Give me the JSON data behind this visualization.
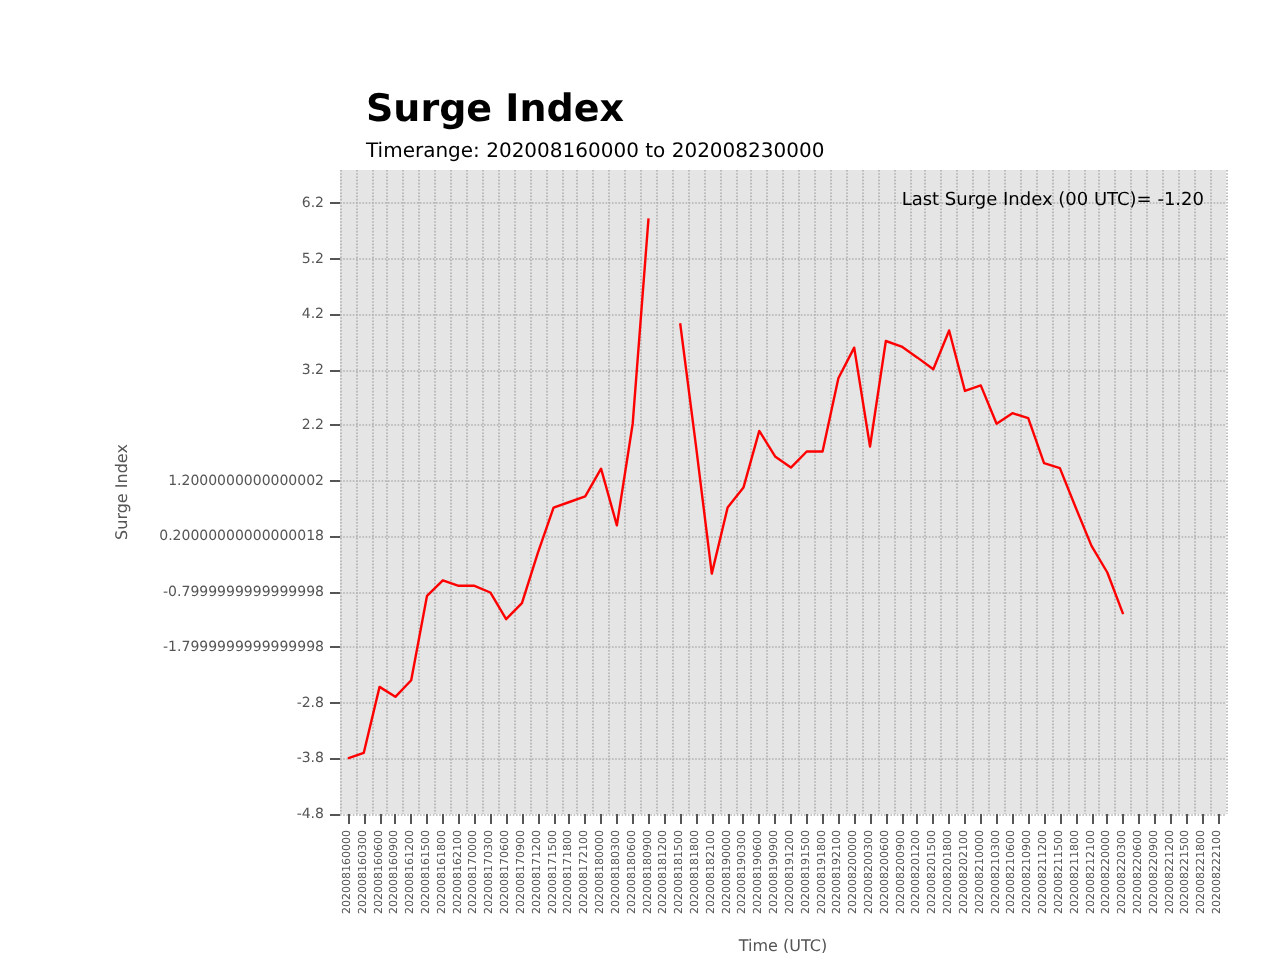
{
  "chart_data": {
    "type": "line",
    "title": "Surge Index",
    "subtitle": "Timerange: 202008160000 to 202008230000",
    "xlabel": "Time (UTC)",
    "ylabel": "Surge Index",
    "annotations": [
      "Last Surge Index (00 UTC)= -1.20"
    ],
    "categories": [
      "202008160000",
      "202008160300",
      "202008160600",
      "202008160900",
      "202008161200",
      "202008161500",
      "202008161800",
      "202008162100",
      "202008170000",
      "202008170300",
      "202008170600",
      "202008170900",
      "202008171200",
      "202008171500",
      "202008171800",
      "202008172100",
      "202008180000",
      "202008180300",
      "202008180600",
      "202008180900",
      "202008181200",
      "202008181500",
      "202008181800",
      "202008182100",
      "202008190000",
      "202008190300",
      "202008190600",
      "202008190900",
      "202008191200",
      "202008191500",
      "202008191800",
      "202008192100",
      "202008200000",
      "202008200300",
      "202008200600",
      "202008200900",
      "202008201200",
      "202008201500",
      "202008201800",
      "202008202100",
      "202008210000",
      "202008210300",
      "202008210600",
      "202008210900",
      "202008211200",
      "202008211500",
      "202008211800",
      "202008212100",
      "202008220000",
      "202008220300",
      "202008220600",
      "202008220900",
      "202008221200",
      "202008221500",
      "202008221800",
      "202008222100"
    ],
    "series": [
      {
        "color": "#ff0000",
        "values": [
          -3.8,
          -3.7,
          -2.51,
          -2.69,
          -2.39,
          -0.87,
          -0.59,
          -0.69,
          -0.69,
          -0.81,
          -1.29,
          -1.0,
          -0.1,
          0.72,
          0.82,
          0.92,
          1.42,
          0.4,
          2.23,
          5.93,
          null,
          4.04,
          1.83,
          -0.47,
          0.72,
          1.08,
          2.1,
          1.64,
          1.44,
          1.73,
          1.73,
          3.05,
          3.6,
          1.82,
          3.72,
          3.62,
          3.42,
          3.21,
          3.91,
          2.82,
          2.92,
          2.23,
          2.42,
          2.33,
          1.52,
          1.43,
          0.72,
          0.03,
          -0.45,
          -1.2,
          null,
          null,
          null,
          null,
          null,
          null
        ]
      }
    ],
    "ylim": [
      -4.8,
      6.8
    ],
    "yticks": [
      -4.8,
      -3.8,
      -2.8,
      {
        "value": -1.8,
        "label": "-1.7999999999999998"
      },
      {
        "value": -0.8,
        "label": "-0.7999999999999998"
      },
      {
        "value": 0.2,
        "label": "0.20000000000000018"
      },
      {
        "value": 1.2,
        "label": "1.2000000000000002"
      },
      2.2,
      3.2,
      4.2,
      5.2,
      6.2
    ],
    "grid": true,
    "marker": "none",
    "line_style": "solid"
  }
}
